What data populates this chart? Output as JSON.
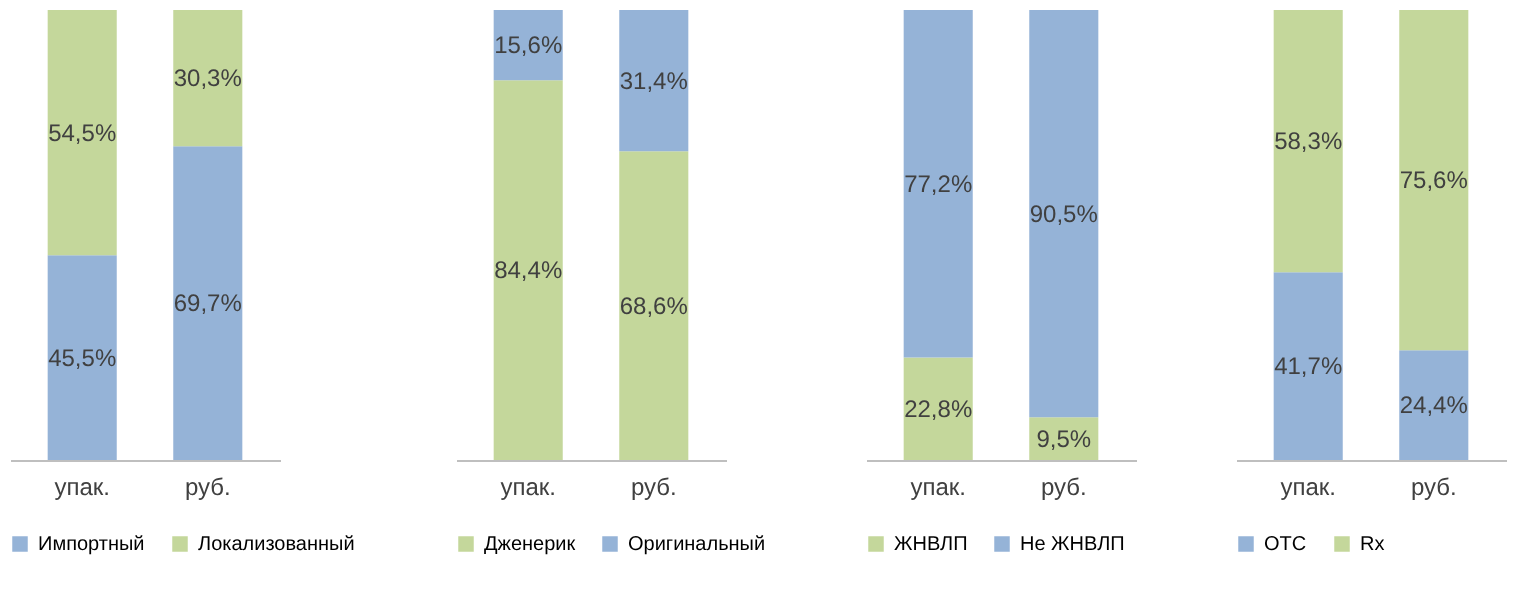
{
  "chart_data": [
    {
      "type": "bar",
      "stacked": true,
      "categories": [
        "упак.",
        "руб."
      ],
      "ylim": [
        0,
        100
      ],
      "tick_labels": "x",
      "grid": false,
      "legend": "bottom",
      "series": [
        {
          "name": "Импортный",
          "color": "#95b3d7",
          "values": [
            45.5,
            69.7
          ],
          "value_labels": [
            "45,5%",
            "69,7%"
          ]
        },
        {
          "name": "Локализованный",
          "color": "#c4d79b",
          "values": [
            54.5,
            30.3
          ],
          "value_labels": [
            "54,5%",
            "30,3%"
          ]
        }
      ]
    },
    {
      "type": "bar",
      "stacked": true,
      "categories": [
        "упак.",
        "руб."
      ],
      "ylim": [
        0,
        100
      ],
      "tick_labels": "x",
      "grid": false,
      "legend": "bottom",
      "series": [
        {
          "name": "Дженерик",
          "color": "#c4d79b",
          "values": [
            84.4,
            68.6
          ],
          "value_labels": [
            "84,4%",
            "68,6%"
          ]
        },
        {
          "name": "Оригинальный",
          "color": "#95b3d7",
          "values": [
            15.6,
            31.4
          ],
          "value_labels": [
            "15,6%",
            "31,4%"
          ]
        }
      ]
    },
    {
      "type": "bar",
      "stacked": true,
      "categories": [
        "упак.",
        "руб."
      ],
      "ylim": [
        0,
        100
      ],
      "tick_labels": "x",
      "grid": false,
      "legend": "bottom",
      "series": [
        {
          "name": "ЖНВЛП",
          "color": "#c4d79b",
          "values": [
            22.8,
            9.5
          ],
          "value_labels": [
            "22,8%",
            "9,5%"
          ]
        },
        {
          "name": "Не ЖНВЛП",
          "color": "#95b3d7",
          "values": [
            77.2,
            90.5
          ],
          "value_labels": [
            "77,2%",
            "90,5%"
          ]
        }
      ]
    },
    {
      "type": "bar",
      "stacked": true,
      "categories": [
        "упак.",
        "руб."
      ],
      "ylim": [
        0,
        100
      ],
      "tick_labels": "x",
      "grid": false,
      "legend": "bottom",
      "series": [
        {
          "name": "OTC",
          "color": "#95b3d7",
          "values": [
            41.7,
            24.4
          ],
          "value_labels": [
            "41,7%",
            "24,4%"
          ]
        },
        {
          "name": "Rx",
          "color": "#c4d79b",
          "values": [
            58.3,
            75.6
          ],
          "value_labels": [
            "58,3%",
            "75,6%"
          ]
        }
      ]
    }
  ]
}
